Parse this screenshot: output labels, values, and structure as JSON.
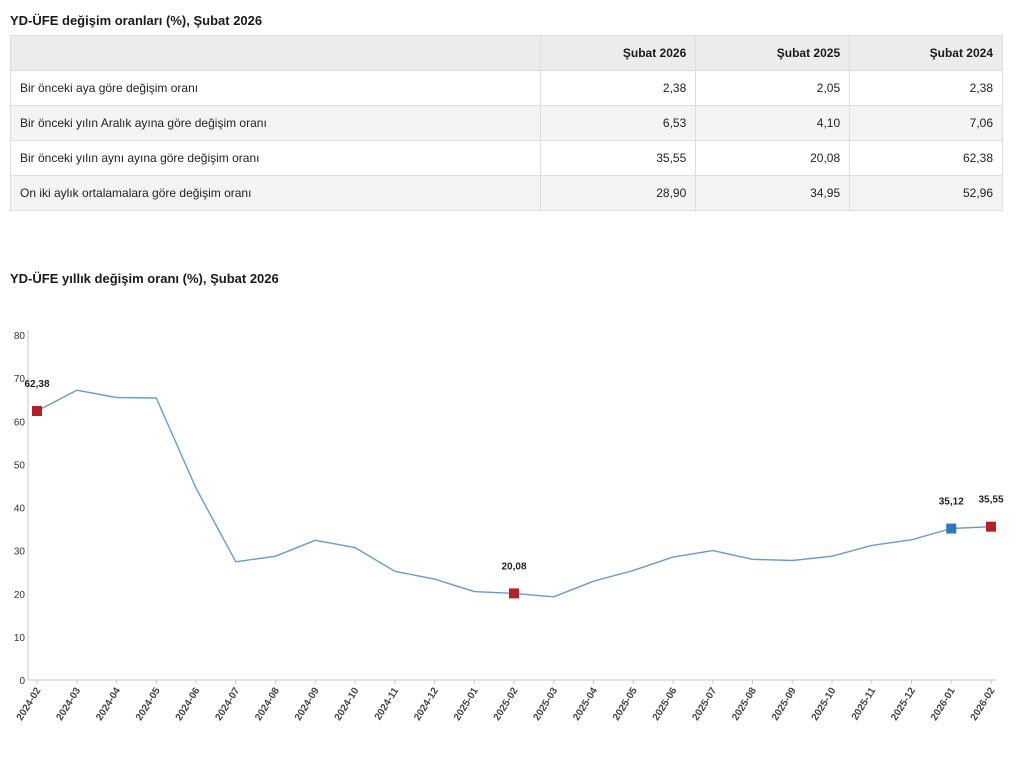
{
  "table": {
    "title": "YD-ÜFE değişim oranları (%), Şubat 2026",
    "headers": [
      "",
      "Şubat 2026",
      "Şubat 2025",
      "Şubat 2024"
    ],
    "rows": [
      {
        "label": "Bir önceki aya göre değişim oranı",
        "values": [
          "2,38",
          "2,05",
          "2,38"
        ]
      },
      {
        "label": "Bir önceki yılın Aralık ayına göre değişim oranı",
        "values": [
          "6,53",
          "4,10",
          "7,06"
        ]
      },
      {
        "label": "Bir önceki yılın aynı ayına göre değişim oranı",
        "values": [
          "35,55",
          "20,08",
          "62,38"
        ]
      },
      {
        "label": "On iki aylık ortalamalara göre değişim oranı",
        "values": [
          "28,90",
          "34,95",
          "52,96"
        ]
      }
    ]
  },
  "chart_data": {
    "type": "line",
    "title": "YD-ÜFE yıllık değişim oranı (%), Şubat 2026",
    "xlabel": "",
    "ylabel": "",
    "ylim": [
      0,
      80
    ],
    "yticks": [
      0,
      10,
      20,
      30,
      40,
      50,
      60,
      70,
      80
    ],
    "grid": false,
    "categories": [
      "2024-02",
      "2024-03",
      "2024-04",
      "2024-05",
      "2024-06",
      "2024-07",
      "2024-08",
      "2024-09",
      "2024-10",
      "2024-11",
      "2024-12",
      "2025-01",
      "2025-02",
      "2025-03",
      "2025-04",
      "2025-05",
      "2025-06",
      "2025-07",
      "2025-08",
      "2025-09",
      "2025-10",
      "2025-11",
      "2025-12",
      "2026-01",
      "2026-02"
    ],
    "series": [
      {
        "values": [
          62.38,
          67.2,
          65.5,
          65.4,
          44.5,
          27.4,
          28.7,
          32.4,
          30.7,
          25.2,
          23.4,
          20.5,
          20.08,
          19.3,
          22.9,
          25.4,
          28.5,
          30.0,
          28.0,
          27.7,
          28.7,
          31.2,
          32.5,
          35.12,
          35.55
        ],
        "color": "#6b9bc6"
      }
    ],
    "markers": [
      {
        "index": 0,
        "label": "62,38",
        "color": "#b22029"
      },
      {
        "index": 12,
        "label": "20,08",
        "color": "#b22029"
      },
      {
        "index": 23,
        "label": "35,12",
        "color": "#2f78b9"
      },
      {
        "index": 24,
        "label": "35,55",
        "color": "#b22029"
      }
    ]
  }
}
